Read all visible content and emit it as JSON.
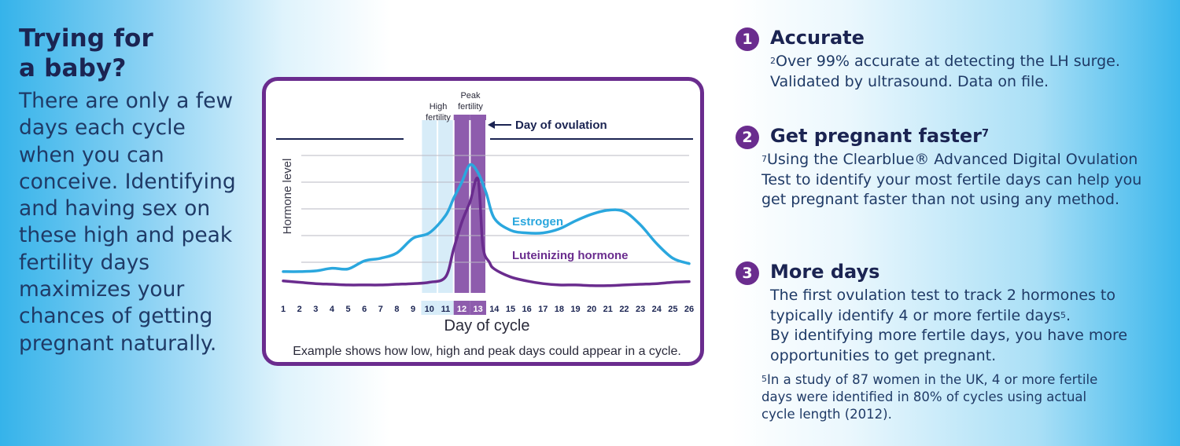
{
  "left": {
    "heading_line1": "Trying for",
    "heading_line2": "a baby?",
    "body": "There are only a few days each cycle when you can conceive. Identifying and having sex on these high and peak fertility days maximizes your chances of getting pregnant naturally."
  },
  "right": {
    "items": [
      {
        "number": "1",
        "title": "Accurate",
        "title_sup": "",
        "body_sup": "2",
        "body": "Over 99% accurate at detecting the LH surge.",
        "body2": "Validated by ultrasound. Data on file."
      },
      {
        "number": "2",
        "title": "Get pregnant faster",
        "title_sup": "7",
        "body_sup": "7",
        "body": "Using the Clearblue® Advanced Digital Ovulation Test to identify your most fertile days can help you get pregnant faster than not using any method."
      },
      {
        "number": "3",
        "title": "More days",
        "title_sup": "",
        "body1": "The first ovulation test to track 2 hormones to typically identify 4 or more fertile days",
        "body1_sup": "5",
        "body1_end": ".",
        "body2": "By identifying more fertile days, you have more opportunities to get pregnant.",
        "note_sup": "5",
        "note": "In a study of 87 women in the UK, 4 or more fertile days were identified in 80% of cycles using actual cycle length (2012)."
      }
    ]
  },
  "chart_data": {
    "type": "line",
    "xlabel": "Day of cycle",
    "ylabel": "Hormone level",
    "caption": "Example shows how low, high and peak days could appear in a cycle.",
    "x": [
      1,
      2,
      3,
      4,
      5,
      6,
      7,
      8,
      9,
      10,
      11,
      12,
      13,
      14,
      15,
      16,
      17,
      18,
      19,
      20,
      21,
      22,
      23,
      24,
      25,
      26
    ],
    "xlim": [
      1,
      26
    ],
    "ylim": [
      0,
      10
    ],
    "grid": true,
    "high_fertility_days": [
      10,
      11
    ],
    "peak_fertility_days": [
      12,
      13
    ],
    "high_label_line1": "High",
    "high_label_line2": "fertility",
    "peak_label_line1": "Peak",
    "peak_label_line2": "fertility",
    "ovulation_label": "Day of ovulation",
    "ovulation_day": 13,
    "series": [
      {
        "name": "Estrogen",
        "color": "#2aa7de",
        "points": [
          [
            1,
            1.3
          ],
          [
            2,
            1.3
          ],
          [
            3,
            1.35
          ],
          [
            4,
            1.55
          ],
          [
            5,
            1.5
          ],
          [
            6,
            2.1
          ],
          [
            7,
            2.3
          ],
          [
            8,
            2.7
          ],
          [
            9,
            3.8
          ],
          [
            10,
            4.2
          ],
          [
            11,
            5.5
          ],
          [
            11.5,
            6.8
          ],
          [
            12,
            8.0
          ],
          [
            12.5,
            9.3
          ],
          [
            13,
            8.7
          ],
          [
            13.5,
            7.2
          ],
          [
            14,
            5.3
          ],
          [
            15,
            4.4
          ],
          [
            16,
            4.2
          ],
          [
            17,
            4.2
          ],
          [
            18,
            4.5
          ],
          [
            19,
            5.1
          ],
          [
            20,
            5.6
          ],
          [
            21,
            5.9
          ],
          [
            22,
            5.8
          ],
          [
            23,
            4.8
          ],
          [
            24,
            3.4
          ],
          [
            25,
            2.3
          ],
          [
            26,
            1.9
          ]
        ]
      },
      {
        "name": "Luteinizing hormone",
        "color": "#6a2c8e",
        "points": [
          [
            1,
            0.6
          ],
          [
            2,
            0.5
          ],
          [
            3,
            0.4
          ],
          [
            4,
            0.35
          ],
          [
            5,
            0.3
          ],
          [
            6,
            0.3
          ],
          [
            7,
            0.3
          ],
          [
            8,
            0.35
          ],
          [
            9,
            0.4
          ],
          [
            10,
            0.5
          ],
          [
            11,
            0.9
          ],
          [
            11.5,
            3.0
          ],
          [
            12,
            5.0
          ],
          [
            12.5,
            6.5
          ],
          [
            13,
            8.2
          ],
          [
            13.3,
            3.2
          ],
          [
            13.7,
            2.0
          ],
          [
            14,
            1.5
          ],
          [
            15,
            0.9
          ],
          [
            16,
            0.6
          ],
          [
            17,
            0.4
          ],
          [
            18,
            0.3
          ],
          [
            19,
            0.3
          ],
          [
            20,
            0.25
          ],
          [
            21,
            0.25
          ],
          [
            22,
            0.3
          ],
          [
            23,
            0.35
          ],
          [
            24,
            0.4
          ],
          [
            25,
            0.5
          ],
          [
            26,
            0.55
          ]
        ]
      }
    ]
  },
  "colors": {
    "purple": "#6a2c8e",
    "blue": "#2aa7de",
    "navy": "#1b2452",
    "high_band": "#d7ecf8",
    "peak_band": "#8e5cad"
  }
}
